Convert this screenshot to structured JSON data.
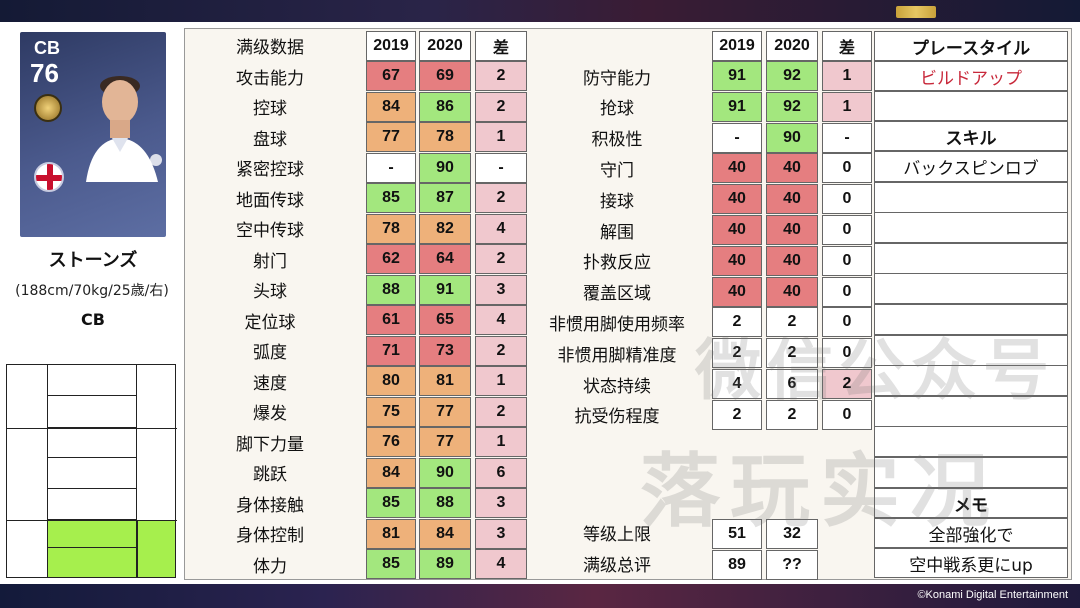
{
  "player": {
    "position": "CB",
    "overall": "76",
    "name": "ストーンズ",
    "info": "(188cm/70kg/25歳/右)",
    "role": "CB"
  },
  "header": {
    "title": "满级数据",
    "y1": "2019",
    "y2": "2020",
    "diff": "差",
    "playstyle_title": "プレースタイル"
  },
  "left_stats": [
    {
      "label": "攻击能力",
      "v2019": "67",
      "v2020": "69",
      "diff": "2",
      "c1": "r",
      "c2": "r",
      "cd": "p"
    },
    {
      "label": "控球",
      "v2019": "84",
      "v2020": "86",
      "diff": "2",
      "c1": "o",
      "c2": "g",
      "cd": "p"
    },
    {
      "label": "盘球",
      "v2019": "77",
      "v2020": "78",
      "diff": "1",
      "c1": "o",
      "c2": "o",
      "cd": "p"
    },
    {
      "label": "紧密控球",
      "v2019": "-",
      "v2020": "90",
      "diff": "-",
      "c1": "w",
      "c2": "g",
      "cd": "w"
    },
    {
      "label": "地面传球",
      "v2019": "85",
      "v2020": "87",
      "diff": "2",
      "c1": "g",
      "c2": "g",
      "cd": "p"
    },
    {
      "label": "空中传球",
      "v2019": "78",
      "v2020": "82",
      "diff": "4",
      "c1": "o",
      "c2": "o",
      "cd": "p"
    },
    {
      "label": "射门",
      "v2019": "62",
      "v2020": "64",
      "diff": "2",
      "c1": "r",
      "c2": "r",
      "cd": "p"
    },
    {
      "label": "头球",
      "v2019": "88",
      "v2020": "91",
      "diff": "3",
      "c1": "g",
      "c2": "g",
      "cd": "p"
    },
    {
      "label": "定位球",
      "v2019": "61",
      "v2020": "65",
      "diff": "4",
      "c1": "r",
      "c2": "r",
      "cd": "p"
    },
    {
      "label": "弧度",
      "v2019": "71",
      "v2020": "73",
      "diff": "2",
      "c1": "r",
      "c2": "r",
      "cd": "p"
    },
    {
      "label": "速度",
      "v2019": "80",
      "v2020": "81",
      "diff": "1",
      "c1": "o",
      "c2": "o",
      "cd": "p"
    },
    {
      "label": "爆发",
      "v2019": "75",
      "v2020": "77",
      "diff": "2",
      "c1": "o",
      "c2": "o",
      "cd": "p"
    },
    {
      "label": "脚下力量",
      "v2019": "76",
      "v2020": "77",
      "diff": "1",
      "c1": "o",
      "c2": "o",
      "cd": "p"
    },
    {
      "label": "跳跃",
      "v2019": "84",
      "v2020": "90",
      "diff": "6",
      "c1": "o",
      "c2": "g",
      "cd": "p"
    },
    {
      "label": "身体接触",
      "v2019": "85",
      "v2020": "88",
      "diff": "3",
      "c1": "g",
      "c2": "g",
      "cd": "p"
    },
    {
      "label": "身体控制",
      "v2019": "81",
      "v2020": "84",
      "diff": "3",
      "c1": "o",
      "c2": "o",
      "cd": "p"
    },
    {
      "label": "体力",
      "v2019": "85",
      "v2020": "89",
      "diff": "4",
      "c1": "g",
      "c2": "g",
      "cd": "p"
    }
  ],
  "right_stats": [
    {
      "label": "防守能力",
      "v2019": "91",
      "v2020": "92",
      "diff": "1",
      "c1": "g",
      "c2": "g",
      "cd": "p"
    },
    {
      "label": "抢球",
      "v2019": "91",
      "v2020": "92",
      "diff": "1",
      "c1": "g",
      "c2": "g",
      "cd": "p"
    },
    {
      "label": "积极性",
      "v2019": "-",
      "v2020": "90",
      "diff": "-",
      "c1": "w",
      "c2": "g",
      "cd": "w"
    },
    {
      "label": "守门",
      "v2019": "40",
      "v2020": "40",
      "diff": "0",
      "c1": "r",
      "c2": "r",
      "cd": "w"
    },
    {
      "label": "接球",
      "v2019": "40",
      "v2020": "40",
      "diff": "0",
      "c1": "r",
      "c2": "r",
      "cd": "w"
    },
    {
      "label": "解围",
      "v2019": "40",
      "v2020": "40",
      "diff": "0",
      "c1": "r",
      "c2": "r",
      "cd": "w"
    },
    {
      "label": "扑救反应",
      "v2019": "40",
      "v2020": "40",
      "diff": "0",
      "c1": "r",
      "c2": "r",
      "cd": "w"
    },
    {
      "label": "覆盖区域",
      "v2019": "40",
      "v2020": "40",
      "diff": "0",
      "c1": "r",
      "c2": "r",
      "cd": "w"
    },
    {
      "label": "非惯用脚使用频率",
      "v2019": "2",
      "v2020": "2",
      "diff": "0",
      "c1": "w",
      "c2": "w",
      "cd": "w"
    },
    {
      "label": "非惯用脚精准度",
      "v2019": "2",
      "v2020": "2",
      "diff": "0",
      "c1": "w",
      "c2": "w",
      "cd": "w"
    },
    {
      "label": "状态持续",
      "v2019": "4",
      "v2020": "6",
      "diff": "2",
      "c1": "w",
      "c2": "w",
      "cd": "p"
    },
    {
      "label": "抗受伤程度",
      "v2019": "2",
      "v2020": "2",
      "diff": "0",
      "c1": "w",
      "c2": "w",
      "cd": "w"
    }
  ],
  "bottom_stats": [
    {
      "label": "等级上限",
      "v2019": "51",
      "v2020": "32"
    },
    {
      "label": "满级总评",
      "v2019": "89",
      "v2020": "??"
    }
  ],
  "side": {
    "playstyle": "ビルドアップ",
    "skill_title": "スキル",
    "skills": [
      "バックスピンロブ"
    ],
    "memo_title": "メモ",
    "memo": [
      "全部強化で",
      "空中戦系更にup"
    ]
  },
  "watermark": {
    "line1": "微信公众号",
    "line2": "落玩实况"
  },
  "copyright": "©Konami Digital Entertainment",
  "colors": {
    "red": "#e57e80",
    "orange": "#eeb17a",
    "green": "#a3e77e",
    "pink": "#f0c8ce",
    "accent_text": "#c8283a"
  }
}
